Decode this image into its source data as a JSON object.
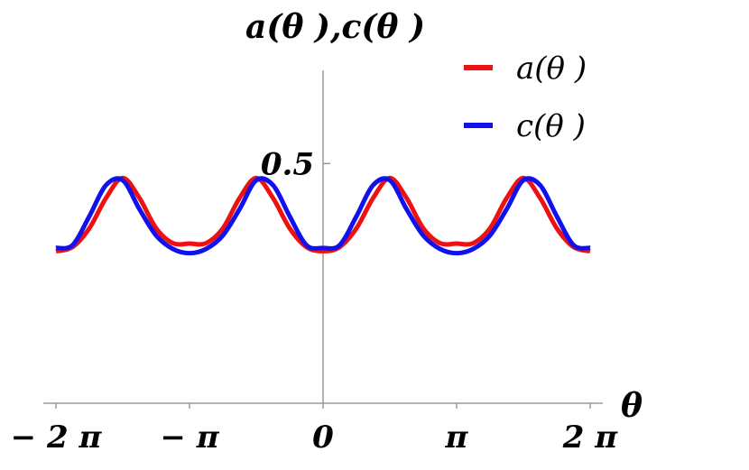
{
  "chart_data": {
    "type": "line",
    "title": "",
    "xlabel": "θ",
    "ylabel": "a(θ ),c(θ )",
    "xlim": [
      -6.2832,
      6.2832
    ],
    "ylim": [
      0.0,
      0.7
    ],
    "x_ticks": [
      {
        "value": -6.2832,
        "label": "− 2 π"
      },
      {
        "value": -3.1416,
        "label": "− π"
      },
      {
        "value": 0,
        "label": "0"
      },
      {
        "value": 3.1416,
        "label": "π"
      },
      {
        "value": 6.2832,
        "label": "2 π"
      }
    ],
    "y_ticks": [
      {
        "value": 0.5,
        "label": "0.5"
      }
    ],
    "grid": false,
    "legend_position": "top-right",
    "series": [
      {
        "name": "a(θ )",
        "color": "#ee1111",
        "x": [
          -6.2832,
          -5.8905,
          -5.4978,
          -5.1051,
          -4.7124,
          -4.3197,
          -3.927,
          -3.5343,
          -3.1416,
          -2.7489,
          -2.3562,
          -1.9635,
          -1.5708,
          -1.1781,
          -0.7854,
          -0.3927,
          0,
          0.3927,
          0.7854,
          1.1781,
          1.5708,
          1.9635,
          2.3562,
          2.7489,
          3.1416,
          3.5343,
          3.927,
          4.3197,
          4.7124,
          5.1051,
          5.4978,
          5.8905,
          6.2832
        ],
        "y": [
          0.317,
          0.326,
          0.365,
          0.428,
          0.47,
          0.428,
          0.365,
          0.334,
          0.333,
          0.334,
          0.365,
          0.428,
          0.47,
          0.428,
          0.365,
          0.326,
          0.317,
          0.326,
          0.365,
          0.428,
          0.47,
          0.428,
          0.365,
          0.334,
          0.333,
          0.334,
          0.365,
          0.428,
          0.47,
          0.428,
          0.365,
          0.326,
          0.317
        ]
      },
      {
        "name": "c(θ )",
        "color": "#1111ee",
        "x": [
          -6.2832,
          -5.8905,
          -5.4978,
          -5.1051,
          -4.7124,
          -4.3197,
          -3.927,
          -3.5343,
          -3.1416,
          -2.7489,
          -2.3562,
          -1.9635,
          -1.5708,
          -1.1781,
          -0.7854,
          -0.3927,
          0,
          0.3927,
          0.7854,
          1.1781,
          1.5708,
          1.9635,
          2.3562,
          2.7489,
          3.1416,
          3.5343,
          3.927,
          4.3197,
          4.7124,
          5.1051,
          5.4978,
          5.8905,
          6.2832
        ],
        "y": [
          0.324,
          0.33,
          0.39,
          0.455,
          0.465,
          0.405,
          0.35,
          0.322,
          0.313,
          0.322,
          0.35,
          0.405,
          0.465,
          0.455,
          0.39,
          0.33,
          0.324,
          0.33,
          0.39,
          0.455,
          0.465,
          0.405,
          0.35,
          0.322,
          0.313,
          0.322,
          0.35,
          0.405,
          0.465,
          0.455,
          0.39,
          0.33,
          0.324
        ]
      }
    ]
  }
}
